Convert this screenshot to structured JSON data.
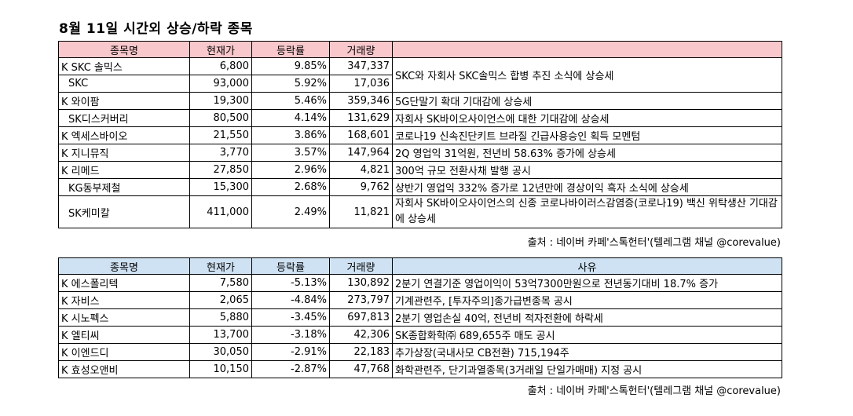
{
  "title": "8월 11일  시간외 상승/하락 종목",
  "rising": {
    "headers": [
      "종목명",
      "현재가",
      "등락률",
      "거래량",
      ""
    ],
    "rows": [
      {
        "name": "K SKC 솔믹스",
        "price": "6,800",
        "change": "9.85%",
        "volume": "347,337",
        "indent": false
      },
      {
        "name": "SKC",
        "price": "93,000",
        "change": "5.92%",
        "volume": "17,036",
        "indent": true
      },
      {
        "name": "K 와이팜",
        "price": "19,300",
        "change": "5.46%",
        "volume": "359,346",
        "reason": "5G단말기 확대 기대감에 상승세",
        "indent": false
      },
      {
        "name": "SK디스커버리",
        "price": "80,500",
        "change": "4.14%",
        "volume": "131,629",
        "reason": "자회사 SK바이오사이언스에 대한 기대감에 상승세",
        "indent": true
      },
      {
        "name": "K 엑세스바이오",
        "price": "21,550",
        "change": "3.86%",
        "volume": "168,601",
        "reason": "코로나19 신속진단키트 브라질 긴급사용승인 획득 모멘텀",
        "indent": false
      },
      {
        "name": "K 지니뮤직",
        "price": "3,770",
        "change": "3.57%",
        "volume": "147,964",
        "reason": "2Q 영업익 31억원, 전년비 58.63% 증가에 상승세",
        "indent": false
      },
      {
        "name": "K 리메드",
        "price": "27,850",
        "change": "2.96%",
        "volume": "4,821",
        "reason": "300억 규모 전환사채 발행 공시",
        "indent": false
      },
      {
        "name": "KG동부제철",
        "price": "15,300",
        "change": "2.68%",
        "volume": "9,762",
        "reason": "상반기 영업익 332% 증가로 12년만에 경상이익 흑자 소식에 상승세",
        "indent": true
      },
      {
        "name": "SK케미칼",
        "price": "411,000",
        "change": "2.49%",
        "volume": "11,821",
        "reason": "자회사 SK바이오사이언스의 신종 코로나바이러스감염증(코로나19) 백신 위탁생산 기대감에 상승세",
        "indent": true
      }
    ],
    "merged_reason": "SKC와 자회사 SKC솔믹스 합병 추진 소식에 상승세",
    "source": "출처 : 네이버 카페'스톡헌터'(텔레그램 채널 @corevalue)"
  },
  "falling": {
    "headers": [
      "종목명",
      "현재가",
      "등락률",
      "거래량",
      "사유"
    ],
    "rows": [
      {
        "name": "K 에스폴리텍",
        "price": "7,580",
        "change": "-5.13%",
        "volume": "130,892",
        "reason": "2분기 연결기준 영업이익이 53억7300만원으로 전년동기대비 18.7% 증가"
      },
      {
        "name": "K 자비스",
        "price": "2,065",
        "change": "-4.84%",
        "volume": "273,797",
        "reason": "기계관련주, [투자주의]종가급변종목 공시"
      },
      {
        "name": "K 시노펙스",
        "price": "5,880",
        "change": "-3.45%",
        "volume": "697,813",
        "reason": "2분기 영업손실 40억, 전년비 적자전환에 하락세"
      },
      {
        "name": "K 엘티씨",
        "price": "13,700",
        "change": "-3.18%",
        "volume": "42,306",
        "reason": "SK종합화학㈜ 689,655주 매도 공시"
      },
      {
        "name": "K 이엔드디",
        "price": "30,050",
        "change": "-2.91%",
        "volume": "22,183",
        "reason": "추가상장(국내사모 CB전환) 715,194주"
      },
      {
        "name": "K 효성오앤비",
        "price": "10,150",
        "change": "-2.87%",
        "volume": "47,768",
        "reason": "화학관련주, 단기과열종목(3거래일 단일가매매) 지정 공시"
      }
    ],
    "source": "출처 : 네이버 카페'스톡헌터'(텔레그램 채널 @corevalue)"
  },
  "colors": {
    "rising_header": "#f8c8cc",
    "falling_header": "#cfe2f3"
  }
}
